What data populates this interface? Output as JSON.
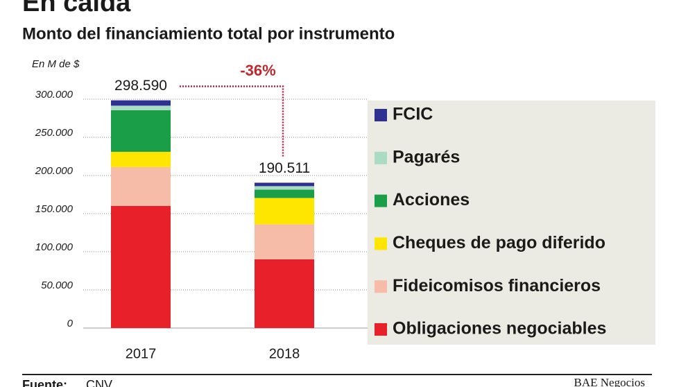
{
  "chart_data": {
    "type": "stacked_bar",
    "title": "En caída",
    "subtitle": "Monto del financiamiento total por instrumento",
    "y_label": "En M de $",
    "categories": [
      "2017",
      "2018"
    ],
    "series": [
      {
        "name": "Obligaciones negociables",
        "color": "#e8202a",
        "values": [
          160000,
          90000
        ]
      },
      {
        "name": "Fideicomisos financieros",
        "color": "#f7bca8",
        "values": [
          51000,
          46000
        ]
      },
      {
        "name": "Cheques de pago diferido",
        "color": "#ffe600",
        "values": [
          20000,
          34500
        ]
      },
      {
        "name": "Acciones",
        "color": "#1a9f48",
        "values": [
          54500,
          11000
        ]
      },
      {
        "name": "Pagarés",
        "color": "#a9dcc3",
        "values": [
          6000,
          4500
        ]
      },
      {
        "name": "FCIC",
        "color": "#2e3192",
        "values": [
          7000,
          4500
        ]
      }
    ],
    "totals": {
      "values": [
        298590,
        190511
      ],
      "value_labels": [
        "298.590",
        "190.511"
      ]
    },
    "change_annotation": "-36%",
    "ylim": [
      0,
      300000
    ],
    "yticks": [
      0,
      {
        "value": 50000,
        "label": "50.000"
      },
      {
        "value": 100000,
        "label": "100.000"
      },
      {
        "value": 150000,
        "label": "150.000"
      },
      {
        "value": 200000,
        "label": "200.000"
      },
      {
        "value": 250000,
        "label": "250.000"
      },
      {
        "value": 300000,
        "label": "300.000"
      }
    ],
    "grid": true,
    "legend": "right",
    "source_label": "Fuente:",
    "source": "CNV",
    "credit": "BAE Negocios"
  }
}
